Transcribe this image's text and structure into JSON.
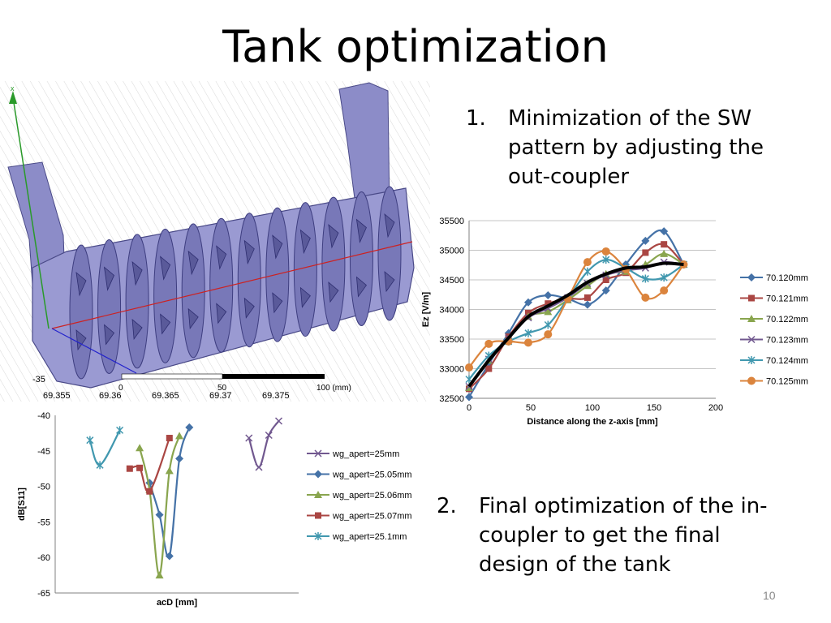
{
  "slide": {
    "title": "Tank optimization",
    "page_number": "10",
    "items": [
      {
        "number": "1.",
        "lines": [
          "Minimization of the SW",
          "pattern by adjusting the",
          "out-coupler"
        ]
      },
      {
        "number": "2.",
        "lines": [
          "Final optimization of the in-",
          "coupler to get the final",
          "design of the tank"
        ]
      }
    ]
  },
  "cad_view": {
    "axis_label": "x",
    "scale_labels": [
      "0",
      "50",
      "100 (mm)"
    ],
    "fragment_tick_y": "-35",
    "fragment_tick_x": [
      "69.355",
      "69.36",
      "69.365",
      "69.37",
      "69.375"
    ]
  },
  "chart_data": [
    {
      "type": "line",
      "xlabel": "Distance along the z-axis [mm]",
      "ylabel": "Ez [V/m]",
      "xlim": [
        0,
        200
      ],
      "ylim": [
        32500,
        35500
      ],
      "xticks": [
        0,
        50,
        100,
        150,
        200
      ],
      "yticks": [
        32500,
        33000,
        33500,
        34000,
        34500,
        35000,
        35500
      ],
      "legend_position": "right",
      "series": [
        {
          "name": "70.120mm",
          "color": "#4572A7",
          "marker": "diamond",
          "points": [
            [
              0,
              32520
            ],
            [
              16,
              33080
            ],
            [
              32,
              33600
            ],
            [
              48,
              34120
            ],
            [
              64,
              34240
            ],
            [
              80,
              34180
            ],
            [
              96,
              34080
            ],
            [
              111,
              34320
            ],
            [
              127,
              34760
            ],
            [
              143,
              35160
            ],
            [
              158,
              35320
            ],
            [
              174,
              34760
            ]
          ]
        },
        {
          "name": "70.121mm",
          "color": "#AA4643",
          "marker": "square",
          "points": [
            [
              0,
              32660
            ],
            [
              16,
              33000
            ],
            [
              32,
              33540
            ],
            [
              48,
              33940
            ],
            [
              64,
              34100
            ],
            [
              80,
              34180
            ],
            [
              96,
              34200
            ],
            [
              111,
              34500
            ],
            [
              127,
              34620
            ],
            [
              143,
              34960
            ],
            [
              158,
              35100
            ],
            [
              174,
              34760
            ]
          ]
        },
        {
          "name": "70.122mm",
          "color": "#89A54E",
          "marker": "triangle",
          "points": [
            [
              0,
              32680
            ],
            [
              16,
              33140
            ],
            [
              32,
              33500
            ],
            [
              48,
              33880
            ],
            [
              64,
              33960
            ],
            [
              80,
              34160
            ],
            [
              96,
              34400
            ],
            [
              111,
              34600
            ],
            [
              127,
              34640
            ],
            [
              143,
              34760
            ],
            [
              158,
              34940
            ],
            [
              174,
              34760
            ]
          ]
        },
        {
          "name": "70.123mm",
          "color": "#71588F",
          "marker": "x",
          "points": [
            [
              0,
              32700
            ],
            [
              16,
              33160
            ],
            [
              32,
              33520
            ],
            [
              48,
              33860
            ],
            [
              64,
              34020
            ],
            [
              80,
              34200
            ],
            [
              96,
              34440
            ],
            [
              111,
              34580
            ],
            [
              127,
              34660
            ],
            [
              143,
              34700
            ],
            [
              158,
              34800
            ],
            [
              174,
              34760
            ]
          ]
        },
        {
          "name": "70.124mm",
          "color": "#4198AF",
          "marker": "asterisk",
          "points": [
            [
              0,
              32820
            ],
            [
              16,
              33220
            ],
            [
              32,
              33460
            ],
            [
              48,
              33600
            ],
            [
              64,
              33740
            ],
            [
              80,
              34180
            ],
            [
              96,
              34640
            ],
            [
              111,
              34840
            ],
            [
              127,
              34700
            ],
            [
              143,
              34520
            ],
            [
              158,
              34540
            ],
            [
              174,
              34760
            ]
          ]
        },
        {
          "name": "70.125mm",
          "color": "#DB843D",
          "marker": "circle",
          "points": [
            [
              0,
              33020
            ],
            [
              16,
              33420
            ],
            [
              32,
              33460
            ],
            [
              48,
              33440
            ],
            [
              64,
              33580
            ],
            [
              80,
              34180
            ],
            [
              96,
              34800
            ],
            [
              111,
              34980
            ],
            [
              127,
              34680
            ],
            [
              143,
              34200
            ],
            [
              158,
              34320
            ],
            [
              174,
              34760
            ]
          ]
        },
        {
          "name": "",
          "color": "#000000",
          "marker": "none",
          "width": 4,
          "points": [
            [
              0,
              32700
            ],
            [
              16,
              33140
            ],
            [
              32,
              33520
            ],
            [
              48,
              33880
            ],
            [
              64,
              34060
            ],
            [
              80,
              34240
            ],
            [
              96,
              34460
            ],
            [
              111,
              34600
            ],
            [
              127,
              34700
            ],
            [
              143,
              34720
            ],
            [
              158,
              34780
            ],
            [
              174,
              34760
            ]
          ]
        }
      ]
    },
    {
      "type": "line",
      "xlabel": "acD [mm]",
      "ylabel": "dB[S11]",
      "xlim": [
        69.353,
        69.3775
      ],
      "ylim": [
        -65,
        -40
      ],
      "yticks": [
        -65,
        -60,
        -55,
        -50,
        -45,
        -40
      ],
      "legend_position": "right",
      "series": [
        {
          "name": "wg_apert=25mm",
          "color": "#71588F",
          "marker": "x",
          "points": [
            [
              69.3725,
              -43.2
            ],
            [
              69.3735,
              -47.3
            ],
            [
              69.3745,
              -42.8
            ],
            [
              69.3755,
              -40.8
            ]
          ]
        },
        {
          "name": "wg_apert=25.05mm",
          "color": "#4572A7",
          "marker": "diamond",
          "points": [
            [
              69.3625,
              -49.5
            ],
            [
              69.3635,
              -54
            ],
            [
              69.3645,
              -59.8
            ],
            [
              69.3655,
              -46.1
            ],
            [
              69.3665,
              -41.7
            ]
          ]
        },
        {
          "name": "wg_apert=25.06mm",
          "color": "#89A54E",
          "marker": "triangle",
          "points": [
            [
              69.3615,
              -44.6
            ],
            [
              69.3625,
              -50.5
            ],
            [
              69.3635,
              -62.5
            ],
            [
              69.3645,
              -47.8
            ],
            [
              69.3655,
              -42.9
            ]
          ]
        },
        {
          "name": "wg_apert=25.07mm",
          "color": "#AA4643",
          "marker": "square",
          "points": [
            [
              69.3605,
              -47.5
            ],
            [
              69.3615,
              -47.4
            ],
            [
              69.3625,
              -50.7
            ],
            [
              69.3645,
              -43.2
            ]
          ]
        },
        {
          "name": "wg_apert=25.1mm",
          "color": "#4198AF",
          "marker": "asterisk",
          "points": [
            [
              69.3565,
              -43.5
            ],
            [
              69.3575,
              -47
            ],
            [
              69.3595,
              -42.1
            ]
          ]
        }
      ]
    }
  ]
}
